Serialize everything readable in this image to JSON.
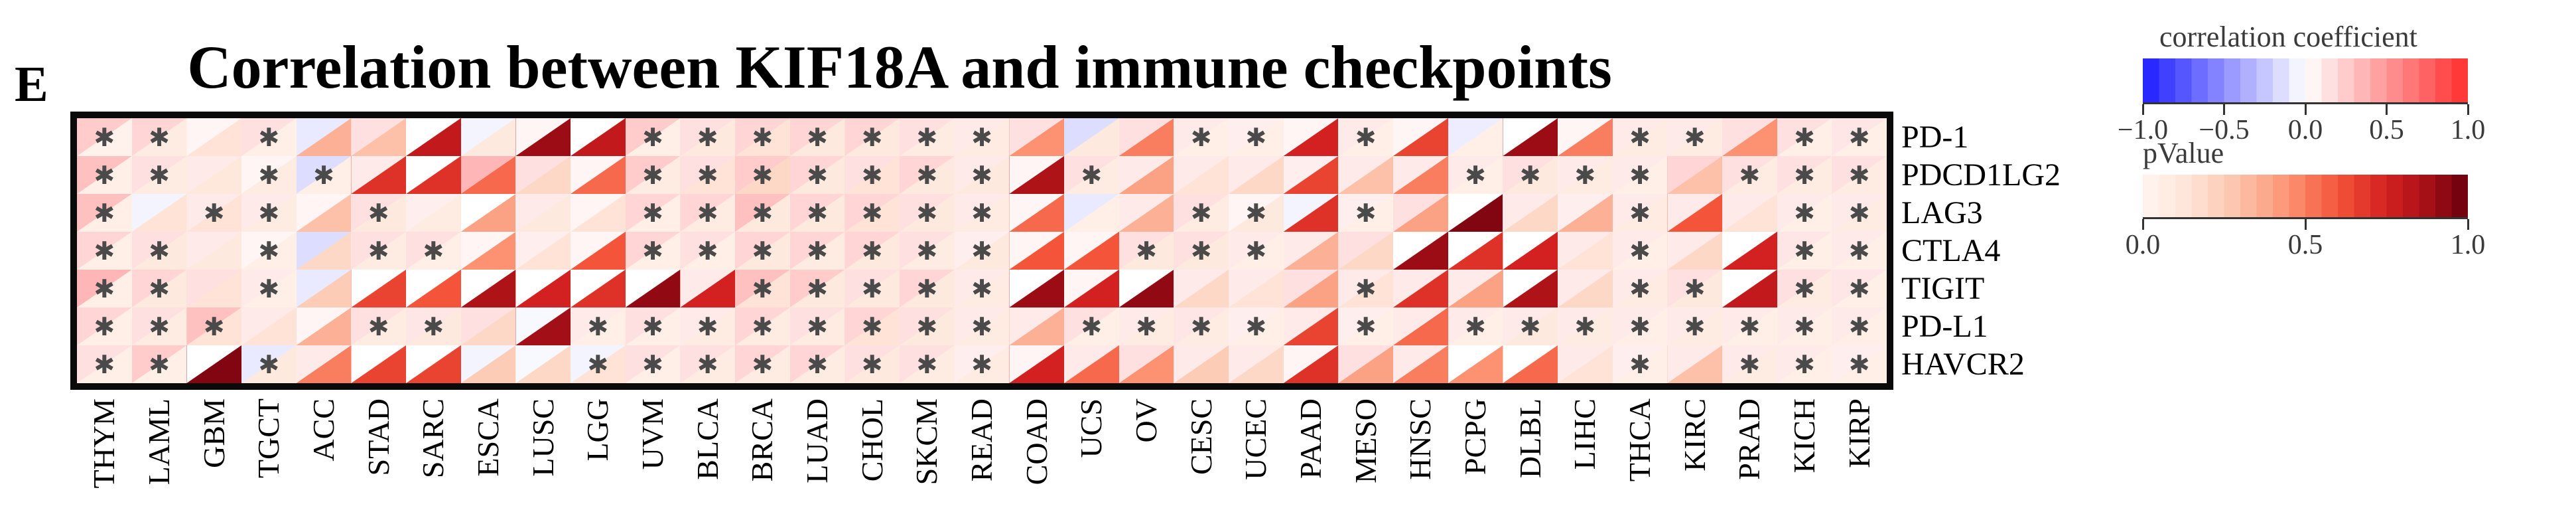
{
  "panel_label": "E",
  "title": "Correlation between KIF18A and immune checkpoints",
  "significance_marker": "✱",
  "chart_data": {
    "type": "heatmap",
    "title": "Correlation between KIF18A and immune checkpoints",
    "cell_encoding": {
      "upper_left_triangle": "correlation coefficient",
      "lower_right_triangle": "pValue",
      "asterisk": "statistically significant"
    },
    "rows": [
      "PD-1",
      "PDCD1LG2",
      "LAG3",
      "CTLA4",
      "TIGIT",
      "PD-L1",
      "HAVCR2"
    ],
    "columns": [
      "THYM",
      "LAML",
      "GBM",
      "TGCT",
      "ACC",
      "STAD",
      "SARC",
      "ESCA",
      "LUSC",
      "LGG",
      "UVM",
      "BLCA",
      "BRCA",
      "LUAD",
      "CHOL",
      "SKCM",
      "READ",
      "COAD",
      "UCS",
      "OV",
      "CESC",
      "UCEC",
      "PAAD",
      "MESO",
      "HNSC",
      "PCPG",
      "DLBL",
      "LIHC",
      "THCA",
      "KIRC",
      "PRAD",
      "KICH",
      "KIRP"
    ],
    "correlation": [
      [
        0.25,
        0.2,
        0.05,
        0.15,
        -0.1,
        0.15,
        0,
        -0.05,
        0.05,
        0,
        0.25,
        0.15,
        0.2,
        0.2,
        0.2,
        0.15,
        0.1,
        0.15,
        -0.15,
        0.15,
        0.1,
        0.08,
        0.05,
        0.1,
        0.05,
        -0.08,
        0,
        0.05,
        0.1,
        0.1,
        0.15,
        0.15,
        0.12
      ],
      [
        0.3,
        0.15,
        0.1,
        0.05,
        -0.15,
        0.1,
        0,
        0.35,
        0.15,
        0.05,
        0.25,
        0.15,
        0.25,
        0.2,
        0.15,
        0.2,
        0.1,
        0.05,
        0.15,
        0.1,
        0.1,
        0.1,
        0.08,
        0.1,
        0.1,
        0.1,
        0.15,
        0.1,
        0.1,
        0.2,
        0.15,
        0.15,
        0.15
      ],
      [
        0.3,
        -0.05,
        0.1,
        0.1,
        0.05,
        0.15,
        0.08,
        0,
        0.1,
        0.05,
        0.2,
        0.2,
        0.3,
        0.2,
        0.2,
        0.15,
        0.1,
        0.05,
        -0.1,
        0.1,
        0.15,
        0.05,
        -0.05,
        0.08,
        0.15,
        0,
        0.1,
        0.08,
        0.1,
        0.1,
        0.1,
        0.1,
        0.1
      ],
      [
        0.2,
        0.15,
        0.1,
        0.05,
        -0.15,
        0.15,
        0.15,
        0.05,
        0.08,
        0.05,
        0.2,
        0.15,
        0.2,
        0.2,
        0.2,
        0.15,
        0.08,
        0.05,
        0.05,
        0.15,
        0.15,
        0.1,
        0.1,
        0.15,
        0,
        0,
        0,
        0.1,
        0.1,
        0.1,
        0,
        0.12,
        0.1
      ],
      [
        0.35,
        0.2,
        0.15,
        0.1,
        -0.1,
        0,
        0,
        0,
        0,
        0,
        0,
        0.1,
        0.3,
        0.25,
        0.15,
        0.2,
        0.1,
        0,
        0.05,
        0,
        0.1,
        0.1,
        0.15,
        0.1,
        0.1,
        0.1,
        0,
        0.1,
        0.1,
        0.15,
        0,
        0.15,
        0.12
      ],
      [
        0.2,
        0.15,
        0.3,
        0.1,
        0.05,
        0.15,
        0.12,
        0.15,
        -0.03,
        0.1,
        0.15,
        0.1,
        0.2,
        0.15,
        0.2,
        0.15,
        0.1,
        0.1,
        0.15,
        0.1,
        0.12,
        0.08,
        0.1,
        0.08,
        0.1,
        0.1,
        0.1,
        0.1,
        0.1,
        0.1,
        0.1,
        0.1,
        0.1
      ],
      [
        0.15,
        0.25,
        0,
        -0.1,
        0.1,
        0,
        0,
        -0.05,
        -0.03,
        -0.05,
        0.15,
        0.15,
        0.2,
        0.2,
        0.15,
        0.15,
        0.08,
        0.05,
        0.1,
        0.15,
        0.1,
        0.1,
        0.05,
        0.15,
        0.1,
        0,
        0,
        0.1,
        0.08,
        0.1,
        0.1,
        0.1,
        0.08
      ]
    ],
    "pvalue": [
      [
        0.03,
        0.08,
        0.15,
        0.05,
        0.35,
        0.3,
        0.8,
        0.1,
        0.9,
        0.8,
        0.05,
        0.1,
        0.15,
        0.1,
        0.1,
        0.08,
        0.08,
        0.45,
        0.1,
        0.5,
        0.05,
        0.05,
        0.75,
        0.05,
        0.65,
        0.05,
        0.9,
        0.5,
        0.08,
        0.08,
        0.45,
        0.05,
        0.05
      ],
      [
        0.05,
        0.08,
        0.12,
        0.08,
        0.05,
        0.7,
        0.7,
        0.55,
        0.2,
        0.55,
        0.08,
        0.15,
        0.2,
        0.1,
        0.15,
        0.1,
        0.1,
        0.85,
        0.08,
        0.4,
        0.15,
        0.2,
        0.65,
        0.3,
        0.5,
        0.05,
        0.1,
        0.08,
        0.05,
        0.3,
        0.08,
        0.08,
        0.08
      ],
      [
        0.05,
        0.15,
        0.15,
        0.08,
        0.3,
        0.1,
        0.08,
        0.4,
        0.1,
        0.15,
        0.05,
        0.08,
        0.1,
        0.1,
        0.15,
        0.1,
        0.08,
        0.55,
        0.05,
        0.35,
        0.08,
        0.1,
        0.7,
        0.05,
        0.4,
        0.95,
        0.2,
        0.35,
        0.08,
        0.6,
        0.15,
        0.05,
        0.08
      ],
      [
        0.05,
        0.1,
        0.1,
        0.05,
        0.2,
        0.08,
        0.05,
        0.45,
        0.15,
        0.6,
        0.05,
        0.05,
        0.1,
        0.08,
        0.1,
        0.08,
        0.1,
        0.6,
        0.6,
        0.1,
        0.1,
        0.05,
        0.35,
        0.2,
        0.9,
        0.7,
        0.75,
        0.15,
        0.05,
        0.2,
        0.75,
        0.05,
        0.05
      ],
      [
        0.05,
        0.1,
        0.15,
        0.05,
        0.25,
        0.65,
        0.6,
        0.85,
        0.75,
        0.7,
        0.92,
        0.75,
        0.15,
        0.1,
        0.1,
        0.1,
        0.08,
        0.9,
        0.75,
        0.92,
        0.2,
        0.15,
        0.4,
        0.15,
        0.7,
        0.4,
        0.85,
        0.2,
        0.08,
        0.1,
        0.8,
        0.08,
        0.05
      ],
      [
        0.05,
        0.08,
        0.15,
        0.15,
        0.35,
        0.08,
        0.1,
        0.2,
        0.88,
        0.05,
        0.05,
        0.08,
        0.08,
        0.08,
        0.15,
        0.1,
        0.08,
        0.35,
        0.05,
        0.08,
        0.08,
        0.05,
        0.65,
        0.05,
        0.55,
        0.05,
        0.1,
        0.08,
        0.05,
        0.08,
        0.05,
        0.05,
        0.05
      ],
      [
        0.05,
        0.05,
        0.95,
        0.1,
        0.5,
        0.65,
        0.65,
        0.25,
        0.2,
        0.15,
        0.05,
        0.08,
        0.08,
        0.08,
        0.1,
        0.08,
        0.08,
        0.75,
        0.55,
        0.45,
        0.25,
        0.2,
        0.7,
        0.4,
        0.5,
        0.45,
        0.55,
        0.15,
        0.05,
        0.3,
        0.08,
        0.05,
        0.05
      ]
    ],
    "significant": [
      [
        1,
        1,
        0,
        1,
        0,
        0,
        0,
        0,
        0,
        0,
        1,
        1,
        1,
        1,
        1,
        1,
        1,
        0,
        0,
        0,
        1,
        1,
        0,
        1,
        0,
        0,
        0,
        0,
        1,
        1,
        0,
        1,
        1
      ],
      [
        1,
        1,
        0,
        1,
        1,
        0,
        0,
        0,
        0,
        0,
        1,
        1,
        1,
        1,
        1,
        1,
        1,
        0,
        1,
        0,
        0,
        0,
        0,
        0,
        0,
        1,
        1,
        1,
        1,
        0,
        1,
        1,
        1
      ],
      [
        1,
        0,
        1,
        1,
        0,
        1,
        0,
        0,
        0,
        0,
        1,
        1,
        1,
        1,
        1,
        1,
        1,
        0,
        0,
        0,
        1,
        1,
        0,
        1,
        0,
        0,
        0,
        0,
        1,
        0,
        0,
        1,
        1
      ],
      [
        1,
        1,
        0,
        1,
        0,
        1,
        1,
        0,
        0,
        0,
        1,
        1,
        1,
        1,
        1,
        1,
        1,
        0,
        0,
        1,
        1,
        1,
        0,
        0,
        0,
        0,
        0,
        0,
        1,
        0,
        0,
        1,
        1
      ],
      [
        1,
        1,
        0,
        1,
        0,
        0,
        0,
        0,
        0,
        0,
        0,
        0,
        1,
        1,
        1,
        1,
        1,
        0,
        0,
        0,
        0,
        0,
        0,
        1,
        0,
        0,
        0,
        0,
        1,
        1,
        0,
        1,
        1
      ],
      [
        1,
        1,
        1,
        0,
        0,
        1,
        1,
        0,
        0,
        1,
        1,
        1,
        1,
        1,
        1,
        1,
        1,
        0,
        1,
        1,
        1,
        1,
        0,
        1,
        0,
        1,
        1,
        1,
        1,
        1,
        1,
        1,
        1
      ],
      [
        1,
        1,
        0,
        1,
        0,
        0,
        0,
        0,
        0,
        1,
        1,
        1,
        1,
        1,
        1,
        1,
        1,
        0,
        0,
        0,
        0,
        0,
        0,
        0,
        0,
        0,
        0,
        0,
        1,
        0,
        1,
        1,
        1
      ]
    ],
    "legend_position": "top-right",
    "grid": false
  },
  "legend": {
    "correlation": {
      "title": "correlation coefficient",
      "min": -1.0,
      "max": 1.0,
      "ticks": [
        "−1.0",
        "−0.5",
        "0.0",
        "0.5",
        "1.0"
      ],
      "color_negative": "#1e1eff",
      "color_mid": "#ffffff",
      "color_positive": "#ff2d2d"
    },
    "pvalue": {
      "title": "pValue",
      "min": 0.0,
      "max": 1.0,
      "ticks": [
        "0.0",
        "0.5",
        "1.0"
      ],
      "color_min": "#fff5f0",
      "color_max": "#67000d"
    }
  }
}
